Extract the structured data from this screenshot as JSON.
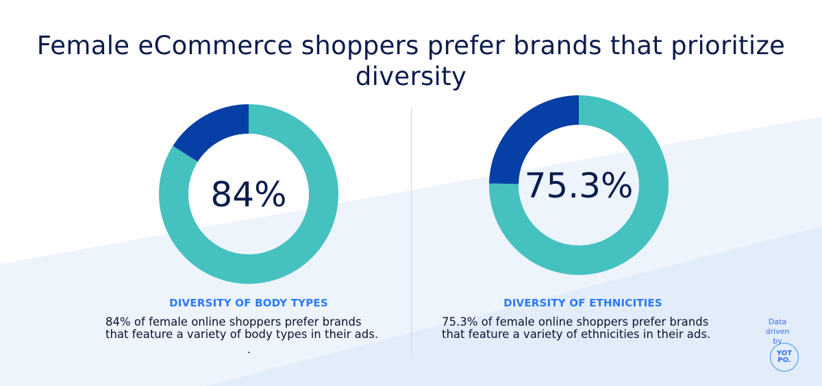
{
  "title": "Female eCommerce shoppers prefer brands that prioritize diversity",
  "colors": {
    "primary": "#45c1c0",
    "secondary": "#063fa5",
    "heading": "#2979ff",
    "text": "#0b1b4d"
  },
  "chart_data": [
    {
      "type": "pie",
      "donut": true,
      "center_label": "84%",
      "values": [
        84,
        16
      ],
      "title": "DIVERSITY OF BODY TYPES",
      "description": "84% of female online shoppers prefer brands that feature a variety of body types in their ads.",
      "trailing_mark": "."
    },
    {
      "type": "pie",
      "donut": true,
      "center_label": "75.3%",
      "values": [
        75.3,
        24.7
      ],
      "title": "DIVERSITY OF ETHNICITIES",
      "description": "75.3% of female online shoppers prefer brands that feature a variety of ethnicities in their ads."
    }
  ],
  "credit": {
    "text": "Data driven by",
    "logo": "YOT PO."
  }
}
